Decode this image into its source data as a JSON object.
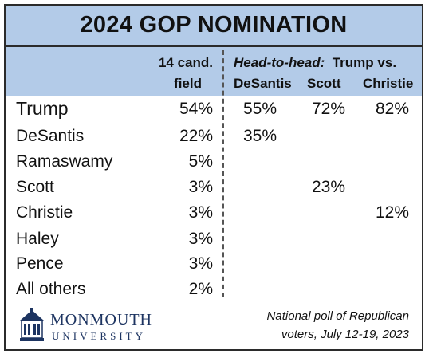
{
  "chart_data": {
    "type": "table",
    "title": "2024 GOP NOMINATION",
    "columns": {
      "field": "14 cand. field",
      "field_line1": "14 cand.",
      "field_line2": "field",
      "head_to_head_label": "Head-to-head:",
      "head_to_head_trump_vs": "Trump vs.",
      "matchups": [
        "DeSantis",
        "Scott",
        "Christie"
      ]
    },
    "rows": [
      {
        "name": "Trump",
        "field": "54%",
        "vs_desantis": "55%",
        "vs_scott": "72%",
        "vs_christie": "82%"
      },
      {
        "name": "DeSantis",
        "field": "22%",
        "vs_desantis": "35%",
        "vs_scott": "",
        "vs_christie": ""
      },
      {
        "name": "Ramaswamy",
        "field": "5%",
        "vs_desantis": "",
        "vs_scott": "",
        "vs_christie": ""
      },
      {
        "name": "Scott",
        "field": "3%",
        "vs_desantis": "",
        "vs_scott": "23%",
        "vs_christie": ""
      },
      {
        "name": "Christie",
        "field": "3%",
        "vs_desantis": "",
        "vs_scott": "",
        "vs_christie": "12%"
      },
      {
        "name": "Haley",
        "field": "3%",
        "vs_desantis": "",
        "vs_scott": "",
        "vs_christie": ""
      },
      {
        "name": "Pence",
        "field": "3%",
        "vs_desantis": "",
        "vs_scott": "",
        "vs_christie": ""
      },
      {
        "name": "All others",
        "field": "2%",
        "vs_desantis": "",
        "vs_scott": "",
        "vs_christie": ""
      }
    ],
    "header_color": "#b3cbe8"
  },
  "footer": {
    "logo_line1": "MONMOUTH",
    "logo_line2": "UNIVERSITY",
    "logo_icon": "university-building-icon",
    "note_line1": "National poll of Republican",
    "note_line2": "voters,  July 12-19, 2023"
  }
}
